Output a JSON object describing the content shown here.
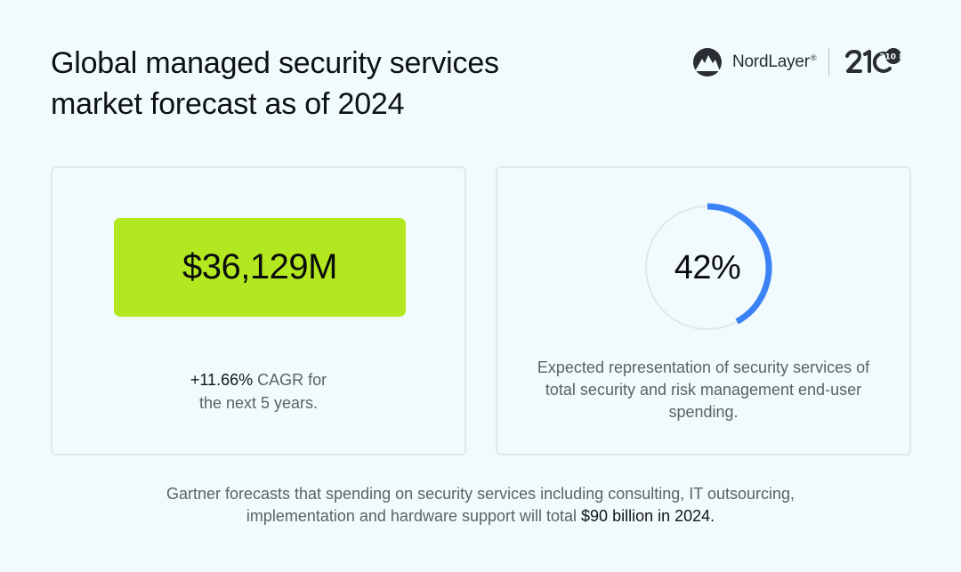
{
  "header": {
    "title_line1": "Global managed security services",
    "title_line2": "market forecast as of 2024"
  },
  "logos": {
    "nordlayer_name": "NordLayer",
    "nordlayer_reg": "®",
    "partner_logo": "210 IT"
  },
  "left_card": {
    "value": "$36,129M",
    "cagr_value": "+11.66%",
    "cagr_suffix": " CAGR for",
    "cagr_line2": "the next 5 years.",
    "accent_color": "#b3e820"
  },
  "right_card": {
    "gauge_percent": 42,
    "gauge_label": "42%",
    "description": "Expected representation of security services of total security and risk management end-user spending.",
    "gauge_color": "#3b82f6"
  },
  "footer": {
    "text_line1": "Gartner forecasts that spending on security services including consulting, IT outsourcing,",
    "text_line2_prefix": "implementation and hardware support will total ",
    "text_highlight": "$90 billion in 2024."
  }
}
